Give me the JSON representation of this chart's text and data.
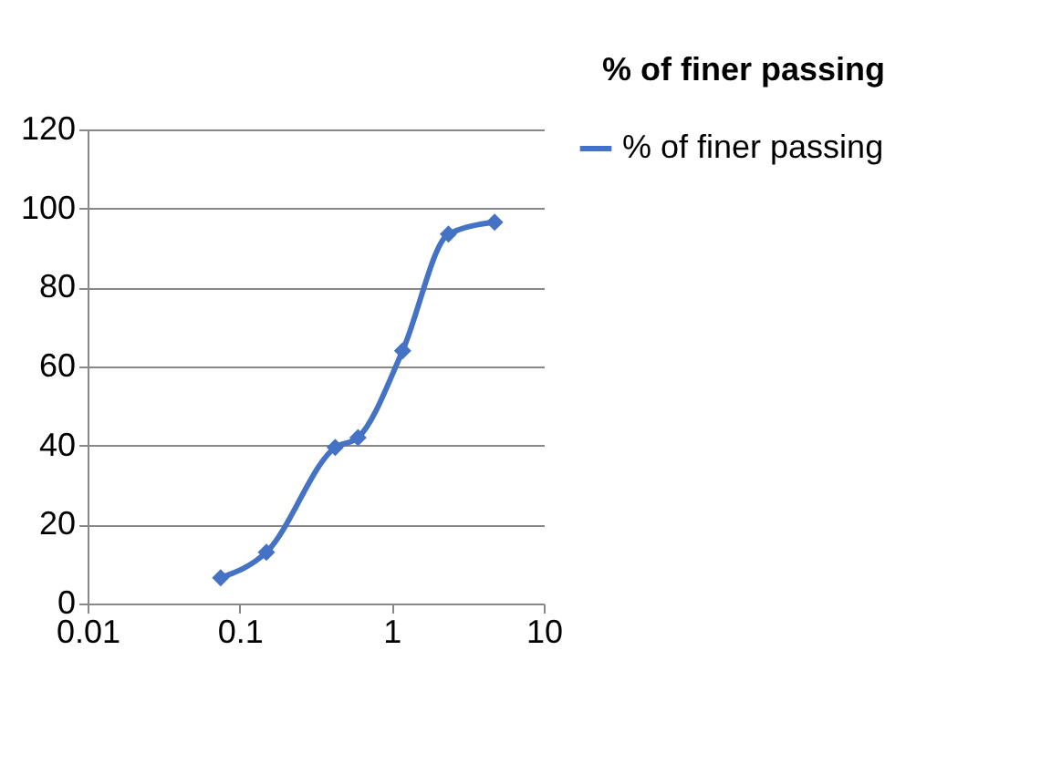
{
  "chart_data": {
    "type": "line",
    "title": "% of finer passing",
    "x": [
      0.075,
      0.15,
      0.425,
      0.6,
      1.18,
      2.36,
      4.75
    ],
    "series": [
      {
        "name": "% of finer passing",
        "color": "#4472c4",
        "values": [
          6.5,
          13,
          39.5,
          42,
          64,
          93.5,
          96.5
        ]
      }
    ],
    "log": "x",
    "xlim": [
      0.01,
      10
    ],
    "xticks": [
      0.01,
      0.1,
      1,
      10
    ],
    "ylim": [
      0,
      120
    ],
    "yticks": [
      0,
      20,
      40,
      60,
      80,
      100,
      120
    ],
    "grid": "y",
    "legend": "right",
    "marker": "diamond",
    "line_style": "solid"
  }
}
